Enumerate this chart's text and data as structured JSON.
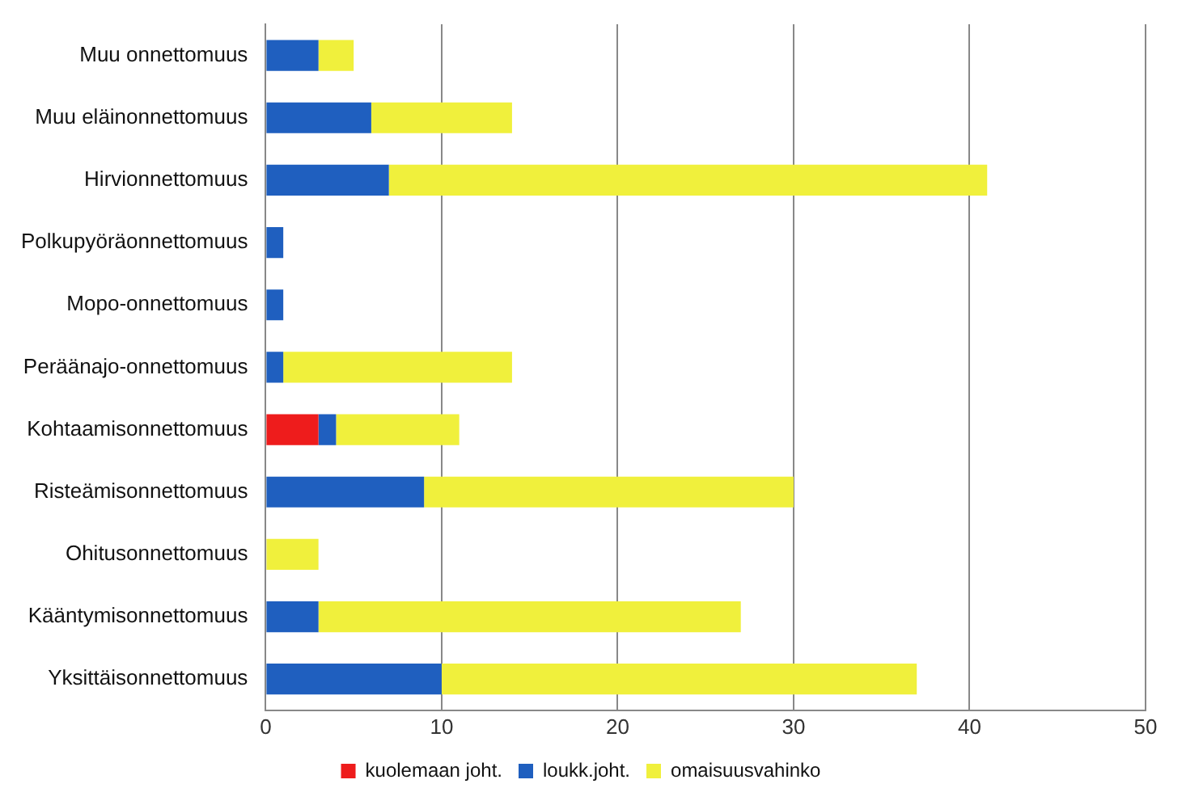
{
  "chart_data": {
    "type": "bar",
    "orientation": "horizontal",
    "stacked": true,
    "categories": [
      "Muu onnettomuus",
      "Muu eläinonnettomuus",
      "Hirvionnettomuus",
      "Polkupyöräonnettomuus",
      "Mopo-onnettomuus",
      "Peräänajo-onnettomuus",
      "Kohtaamisonnettomuus",
      "Risteämisonnettomuus",
      "Ohitusonnettomuus",
      "Kääntymisonnettomuus",
      "Yksittäisonnettomuus"
    ],
    "series": [
      {
        "name": "kuolemaan joht.",
        "color": "#ee1c1c",
        "values": [
          0,
          0,
          0,
          0,
          0,
          0,
          3,
          0,
          0,
          0,
          0
        ]
      },
      {
        "name": "loukk.joht.",
        "color": "#1f5fbf",
        "values": [
          3,
          6,
          7,
          1,
          1,
          1,
          1,
          9,
          0,
          3,
          10
        ]
      },
      {
        "name": "omaisuusvahinko",
        "color": "#f0f03c",
        "values": [
          2,
          8,
          34,
          0,
          0,
          13,
          7,
          21,
          3,
          24,
          27
        ]
      }
    ],
    "xlim": [
      0,
      50
    ],
    "xticks": [
      0,
      10,
      20,
      30,
      40,
      50
    ],
    "grid": "x",
    "legend": "bottom"
  }
}
